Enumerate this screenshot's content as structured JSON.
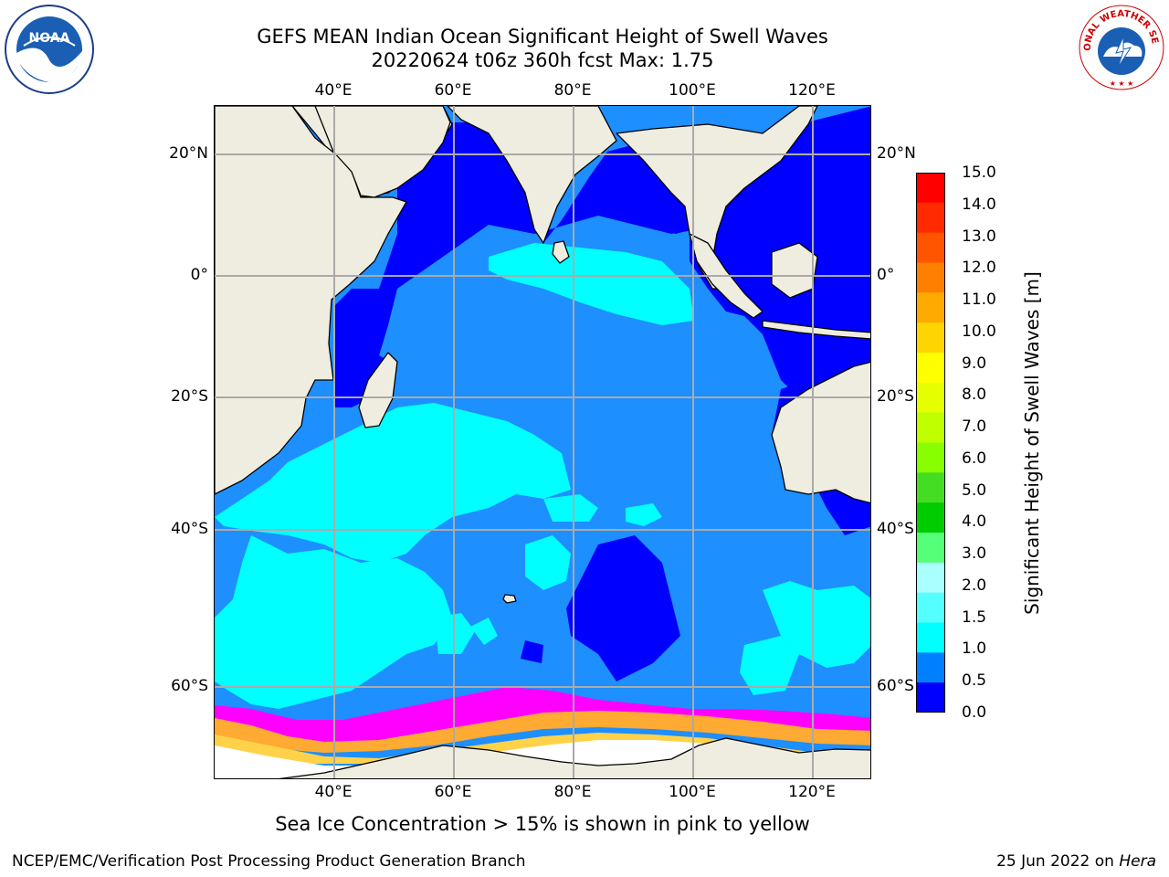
{
  "title": {
    "line1": "GEFS MEAN Indian Ocean Significant Height of Swell Waves",
    "line2": "20220624 t06z 360h fcst   Max: 1.75"
  },
  "axes": {
    "lon_ticks": [
      "40°E",
      "60°E",
      "80°E",
      "100°E",
      "120°E"
    ],
    "lat_ticks_left": [
      "20°N",
      "0°",
      "20°S",
      "40°S",
      "60°S"
    ],
    "lat_ticks_right": [
      "20°N",
      "0°",
      "20°S",
      "40°S",
      "60°S"
    ]
  },
  "colorbar": {
    "title": "Significant Height of Swell Waves [m]",
    "labels": [
      "15.0",
      "14.0",
      "13.0",
      "12.0",
      "11.0",
      "10.0",
      "9.0",
      "8.0",
      "7.0",
      "6.0",
      "5.0",
      "4.0",
      "3.0",
      "2.0",
      "1.5",
      "1.0",
      "0.5",
      "0.0"
    ],
    "colors": [
      "#ff0000",
      "#ff2a00",
      "#ff5500",
      "#ff8000",
      "#ffaa00",
      "#ffd400",
      "#ffff00",
      "#e6ff00",
      "#bfff00",
      "#88ff00",
      "#44dd22",
      "#00cc00",
      "#55ff77",
      "#aaffff",
      "#55ffff",
      "#00ffff",
      "#0080ff",
      "#0000ff"
    ]
  },
  "map_colors": {
    "ocean_0_0.5": "#0000ff",
    "ocean_0.5_1.0": "#1e8fff",
    "ocean_1.0_1.5": "#00ffff",
    "land": "#efeddf",
    "sea_ice": "#ffffff",
    "ice_edge": [
      "#ff00ff",
      "#ffaa33",
      "#ffd24a"
    ]
  },
  "caption": "Sea Ice Concentration > 15% is shown in pink to yellow",
  "footer": {
    "left": "NCEP/EMC/Verification Post Processing Product Generation Branch",
    "right_date": "25 Jun 2022 on",
    "right_host": "Hera"
  },
  "logos": {
    "noaa_text": "NOAA",
    "nws_text": "NATIONAL WEATHER SERVICE"
  }
}
